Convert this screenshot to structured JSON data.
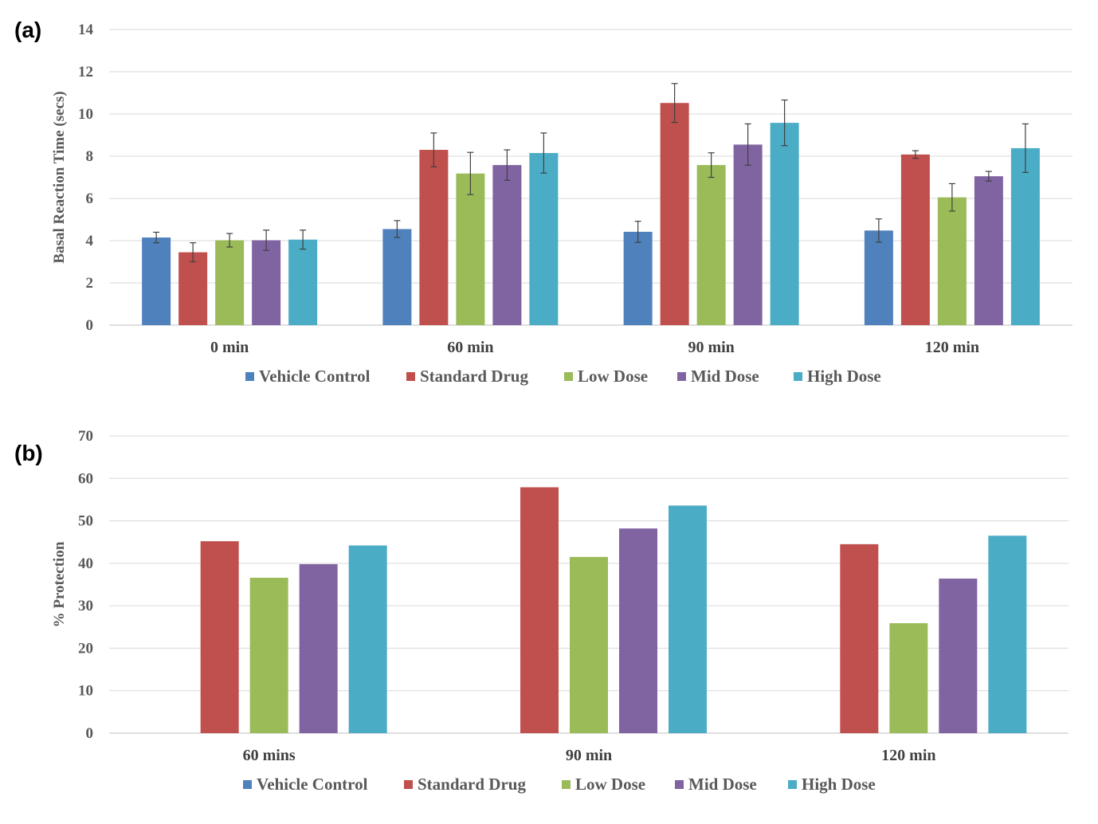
{
  "chart_data": [
    {
      "type": "bar",
      "panel_label": "(a)",
      "categories": [
        "0 min",
        "60 min",
        "90 min",
        "120 min"
      ],
      "ylabel": "Basal Reaction Time (secs)",
      "ylim": [
        0,
        14
      ],
      "yticks": [
        0,
        2,
        4,
        6,
        8,
        10,
        12,
        14
      ],
      "grid": true,
      "legend_position": "bottom",
      "error_bars": true,
      "series": [
        {
          "name": "Vehicle Control",
          "color": "#4f81bd",
          "values": [
            4.15,
            4.55,
            4.42,
            4.48
          ],
          "errors": [
            0.25,
            0.4,
            0.5,
            0.55
          ]
        },
        {
          "name": "Standard Drug",
          "color": "#c0504d",
          "values": [
            3.45,
            8.3,
            10.52,
            8.08
          ],
          "errors": [
            0.45,
            0.8,
            0.92,
            0.18
          ]
        },
        {
          "name": "Low Dose",
          "color": "#9bbb59",
          "values": [
            4.02,
            7.18,
            7.58,
            6.05
          ],
          "errors": [
            0.32,
            1.0,
            0.58,
            0.65
          ]
        },
        {
          "name": "Mid Dose",
          "color": "#8064a2",
          "values": [
            4.02,
            7.58,
            8.55,
            7.05
          ],
          "errors": [
            0.48,
            0.72,
            0.98,
            0.23
          ]
        },
        {
          "name": "High Dose",
          "color": "#4bacc6",
          "values": [
            4.05,
            8.15,
            9.58,
            8.38
          ],
          "errors": [
            0.45,
            0.95,
            1.08,
            1.15
          ]
        }
      ]
    },
    {
      "type": "bar",
      "panel_label": "(b)",
      "categories": [
        "60 mins",
        "90 min",
        "120 min"
      ],
      "ylabel": "% Protection",
      "ylim": [
        0,
        70
      ],
      "yticks": [
        0,
        10,
        20,
        30,
        40,
        50,
        60,
        70
      ],
      "grid": true,
      "legend_position": "bottom",
      "error_bars": false,
      "series": [
        {
          "name": "Vehicle Control",
          "color": "#4f81bd",
          "values": [
            0,
            0,
            0
          ]
        },
        {
          "name": "Standard Drug",
          "color": "#c0504d",
          "values": [
            45.2,
            57.9,
            44.5
          ]
        },
        {
          "name": "Low Dose",
          "color": "#9bbb59",
          "values": [
            36.6,
            41.5,
            25.9
          ]
        },
        {
          "name": "Mid Dose",
          "color": "#8064a2",
          "values": [
            39.8,
            48.2,
            36.4
          ]
        },
        {
          "name": "High Dose",
          "color": "#4bacc6",
          "values": [
            44.2,
            53.6,
            46.5
          ]
        }
      ]
    }
  ]
}
